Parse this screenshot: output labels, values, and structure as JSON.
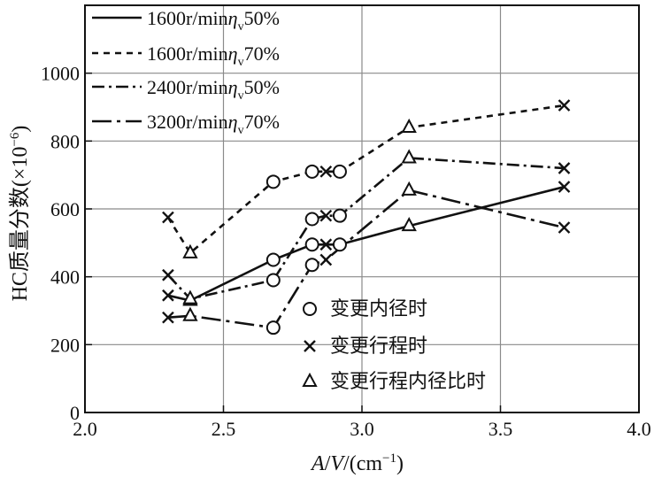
{
  "chart_data": {
    "type": "line",
    "title": "",
    "xlabel_parts": [
      "A",
      "/",
      "V",
      "/(cm",
      "−1",
      ")"
    ],
    "ylabel_parts": [
      "HC质量分数(×10",
      "−6",
      ")"
    ],
    "xlim": [
      2.0,
      4.0
    ],
    "ylim": [
      0,
      1200
    ],
    "xticks": [
      2.0,
      2.5,
      3.0,
      3.5,
      4.0
    ],
    "xtick_labels": [
      "2.0",
      "2.5",
      "3.0",
      "3.5",
      "4.0"
    ],
    "yticks": [
      0,
      200,
      400,
      600,
      800,
      1000
    ],
    "ytick_labels": [
      "0",
      "200",
      "400",
      "600",
      "800",
      "1000"
    ],
    "grid": true,
    "line_legend": {
      "placement": "top-left",
      "entries": [
        {
          "series": 0,
          "speed": "1600r/min",
          "eta": "η",
          "sub": "v",
          "load": "50%",
          "dash": "solid"
        },
        {
          "series": 1,
          "speed": "1600r/min",
          "eta": "η",
          "sub": "v",
          "load": "70%",
          "dash": "dashed"
        },
        {
          "series": 2,
          "speed": "2400r/min",
          "eta": "η",
          "sub": "v",
          "load": "50%",
          "dash": "dashdot"
        },
        {
          "series": 3,
          "speed": "3200r/min",
          "eta": "η",
          "sub": "v",
          "load": "70%",
          "dash": "longdashdot"
        }
      ]
    },
    "marker_legend": {
      "placement": "bottom-center",
      "entries": [
        {
          "marker": "circle",
          "label": "变更内径时"
        },
        {
          "marker": "cross",
          "label": "变更行程时"
        },
        {
          "marker": "triangle",
          "label": "变更行程内径比时"
        }
      ]
    },
    "series": [
      {
        "dash": "solid",
        "points": [
          {
            "x": 2.3,
            "y": 345,
            "m": "cross"
          },
          {
            "x": 2.38,
            "y": 330,
            "m": "triangle"
          },
          {
            "x": 2.68,
            "y": 450,
            "m": "circle"
          },
          {
            "x": 2.82,
            "y": 495,
            "m": "circle"
          },
          {
            "x": 2.87,
            "y": 495,
            "m": "cross"
          },
          {
            "x": 2.92,
            "y": 495,
            "m": "circle"
          },
          {
            "x": 3.17,
            "y": 550,
            "m": "triangle"
          },
          {
            "x": 3.73,
            "y": 665,
            "m": "cross"
          }
        ]
      },
      {
        "dash": "dashed",
        "points": [
          {
            "x": 2.3,
            "y": 575,
            "m": "cross"
          },
          {
            "x": 2.38,
            "y": 470,
            "m": "triangle"
          },
          {
            "x": 2.68,
            "y": 680,
            "m": "circle"
          },
          {
            "x": 2.82,
            "y": 710,
            "m": "circle"
          },
          {
            "x": 2.87,
            "y": 710,
            "m": "cross"
          },
          {
            "x": 2.92,
            "y": 710,
            "m": "circle"
          },
          {
            "x": 3.17,
            "y": 840,
            "m": "triangle"
          },
          {
            "x": 3.73,
            "y": 905,
            "m": "cross"
          }
        ]
      },
      {
        "dash": "dashdot",
        "points": [
          {
            "x": 2.3,
            "y": 405,
            "m": "cross"
          },
          {
            "x": 2.38,
            "y": 335,
            "m": "triangle"
          },
          {
            "x": 2.68,
            "y": 390,
            "m": "circle"
          },
          {
            "x": 2.82,
            "y": 570,
            "m": "circle"
          },
          {
            "x": 2.87,
            "y": 580,
            "m": "cross"
          },
          {
            "x": 2.92,
            "y": 580,
            "m": "circle"
          },
          {
            "x": 3.17,
            "y": 750,
            "m": "triangle"
          },
          {
            "x": 3.73,
            "y": 720,
            "m": "cross"
          }
        ]
      },
      {
        "dash": "longdashdot",
        "points": [
          {
            "x": 2.3,
            "y": 280,
            "m": "cross"
          },
          {
            "x": 2.38,
            "y": 285,
            "m": "triangle"
          },
          {
            "x": 2.68,
            "y": 250,
            "m": "circle"
          },
          {
            "x": 2.82,
            "y": 435,
            "m": "circle"
          },
          {
            "x": 2.87,
            "y": 450,
            "m": "cross"
          },
          {
            "x": 3.17,
            "y": 655,
            "m": "triangle"
          },
          {
            "x": 3.73,
            "y": 545,
            "m": "cross"
          }
        ]
      }
    ]
  }
}
